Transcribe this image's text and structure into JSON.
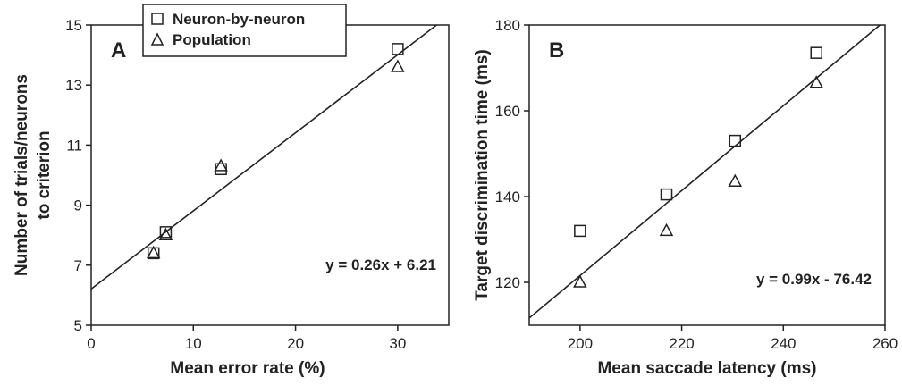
{
  "colors": {
    "ink": "#222222",
    "background": "#ffffff"
  },
  "legend": {
    "placement": "top-center of panel A",
    "entries": [
      {
        "label": "Neuron-by-neuron",
        "marker": "square"
      },
      {
        "label": "Population",
        "marker": "triangle"
      }
    ]
  },
  "chart_data": [
    {
      "type": "scatter",
      "panel_label": "A",
      "xlabel": "Mean error rate (%)",
      "ylabel_line1": "Number of trials/neurons",
      "ylabel_line2": "to criterion",
      "xlim": [
        0,
        35
      ],
      "ylim": [
        5,
        15
      ],
      "xticks": [
        0,
        10,
        20,
        30
      ],
      "yticks": [
        5,
        7,
        9,
        11,
        13,
        15
      ],
      "grid": false,
      "series": [
        {
          "name": "Neuron-by-neuron",
          "marker": "square",
          "points": [
            [
              6.1,
              7.4
            ],
            [
              7.3,
              8.1
            ],
            [
              12.7,
              10.2
            ],
            [
              30.0,
              14.2
            ]
          ]
        },
        {
          "name": "Population",
          "marker": "triangle",
          "points": [
            [
              6.1,
              7.4
            ],
            [
              7.3,
              8.0
            ],
            [
              12.7,
              10.3
            ],
            [
              30.0,
              13.6
            ]
          ]
        }
      ],
      "fit": {
        "slope": 0.26,
        "intercept": 6.21,
        "equation": "y = 0.26x + 6.21"
      }
    },
    {
      "type": "scatter",
      "panel_label": "B",
      "xlabel": "Mean saccade latency (ms)",
      "ylabel_line1": "Target discrimination time (ms)",
      "ylabel_line2": "",
      "xlim": [
        190,
        260
      ],
      "ylim": [
        110,
        180
      ],
      "xticks": [
        200,
        220,
        240,
        260
      ],
      "yticks": [
        120,
        140,
        160,
        180
      ],
      "grid": false,
      "series": [
        {
          "name": "Neuron-by-neuron",
          "marker": "square",
          "points": [
            [
              200,
              132
            ],
            [
              217,
              140.5
            ],
            [
              230.5,
              153
            ],
            [
              246.5,
              173.5
            ]
          ]
        },
        {
          "name": "Population",
          "marker": "triangle",
          "points": [
            [
              200,
              120
            ],
            [
              217,
              132
            ],
            [
              230.5,
              143.5
            ],
            [
              246.5,
              166.5
            ]
          ]
        }
      ],
      "fit": {
        "slope": 0.99,
        "intercept": -76.42,
        "equation": "y = 0.99x - 76.42"
      }
    }
  ]
}
